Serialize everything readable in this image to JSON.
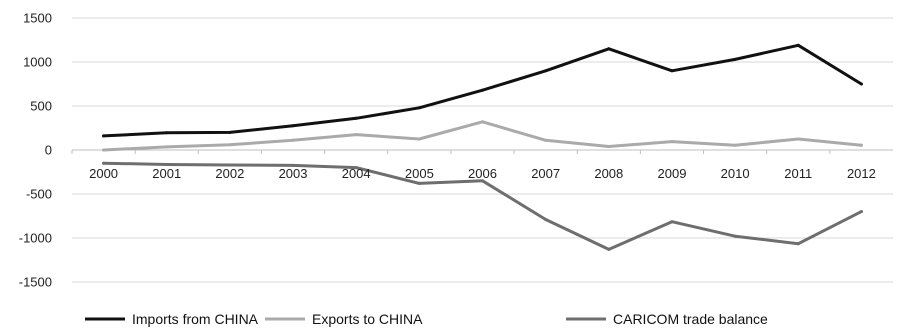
{
  "chart_data": {
    "type": "line",
    "title": "",
    "xlabel": "",
    "ylabel": "",
    "categories": [
      "2000",
      "2001",
      "2002",
      "2003",
      "2004",
      "2005",
      "2006",
      "2007",
      "2008",
      "2009",
      "2010",
      "2011",
      "2012"
    ],
    "ylim": [
      -1500,
      1500
    ],
    "yticks": [
      "1500",
      "1000",
      "500",
      "0",
      "-500",
      "-1000",
      "-1500"
    ],
    "grid": true,
    "legend_position": "bottom",
    "series": [
      {
        "name": "Imports from CHINA",
        "color": "#111111",
        "values": [
          160,
          195,
          200,
          275,
          360,
          480,
          680,
          900,
          1150,
          900,
          1030,
          1190,
          750
        ]
      },
      {
        "name": "Exports to CHINA",
        "color": "#aaaaaa",
        "values": [
          0,
          35,
          60,
          110,
          175,
          125,
          320,
          110,
          40,
          95,
          55,
          125,
          55
        ]
      },
      {
        "name": "CARICOM trade balance",
        "color": "#6e6e6e",
        "values": [
          -150,
          -165,
          -170,
          -175,
          -200,
          -380,
          -350,
          -790,
          -1130,
          -815,
          -980,
          -1065,
          -700
        ]
      }
    ]
  }
}
